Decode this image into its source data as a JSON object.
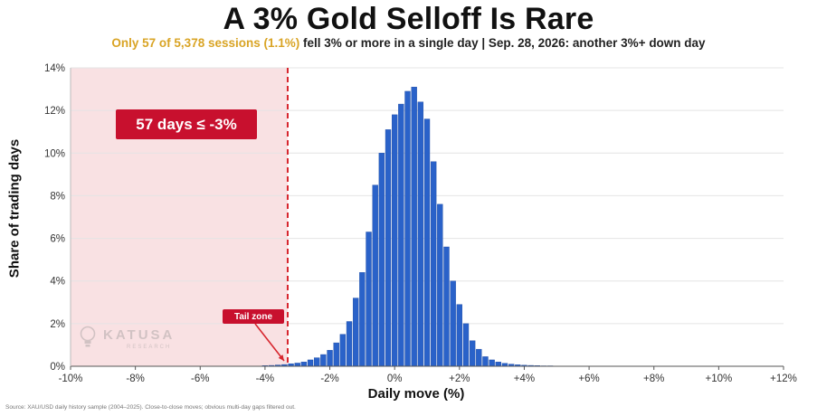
{
  "header": {
    "title": "A 3% Gold Selloff Is Rare",
    "subtitle_highlight": "Only 57 of 5,378 sessions (1.1%)",
    "subtitle_rest": " fell 3% or more in a single day | Sep. 28, 2026: another 3%+ down day"
  },
  "annotations": {
    "callout": "57 days ≤ -3%",
    "tail_tag": "Tail zone"
  },
  "watermark": {
    "name": "KATUSA",
    "sub": "RESEARCH"
  },
  "source": "Source: XAU/USD daily history sample (2004–2025). Close-to-close moves; obvious multi-day gaps filtered out.",
  "colors": {
    "bar": "#2a62c9",
    "bar_edge": "#1c4aa3",
    "tail_fill": "#f9e1e3",
    "threshold": "#d7262e",
    "callout_bg": "#c8102e"
  },
  "chart_data": {
    "type": "bar",
    "xlabel": "Daily move (%)",
    "ylabel": "Share of trading days",
    "xlim": [
      -10,
      12
    ],
    "ylim": [
      0,
      14
    ],
    "x_ticks": [
      "-10%",
      "-8%",
      "-6%",
      "-4%",
      "-2%",
      "0%",
      "+2%",
      "+4%",
      "+6%",
      "+8%",
      "+10%",
      "+12%"
    ],
    "x_tick_values": [
      -10,
      -8,
      -6,
      -4,
      -2,
      0,
      2,
      4,
      6,
      8,
      10,
      12
    ],
    "y_ticks": [
      "0%",
      "2%",
      "4%",
      "6%",
      "8%",
      "10%",
      "12%",
      "14%"
    ],
    "y_tick_values": [
      0,
      2,
      4,
      6,
      8,
      10,
      12,
      14
    ],
    "threshold": -3.3,
    "bin_width": 0.2,
    "bins": [
      {
        "x": -4.0,
        "y": 0.03
      },
      {
        "x": -3.8,
        "y": 0.04
      },
      {
        "x": -3.6,
        "y": 0.06
      },
      {
        "x": -3.4,
        "y": 0.08
      },
      {
        "x": -3.2,
        "y": 0.12
      },
      {
        "x": -3.0,
        "y": 0.15
      },
      {
        "x": -2.8,
        "y": 0.2
      },
      {
        "x": -2.6,
        "y": 0.3
      },
      {
        "x": -2.4,
        "y": 0.4
      },
      {
        "x": -2.2,
        "y": 0.55
      },
      {
        "x": -2.0,
        "y": 0.75
      },
      {
        "x": -1.8,
        "y": 1.1
      },
      {
        "x": -1.6,
        "y": 1.5
      },
      {
        "x": -1.4,
        "y": 2.1
      },
      {
        "x": -1.2,
        "y": 3.2
      },
      {
        "x": -1.0,
        "y": 4.4
      },
      {
        "x": -0.8,
        "y": 6.3
      },
      {
        "x": -0.6,
        "y": 8.5
      },
      {
        "x": -0.4,
        "y": 10.0
      },
      {
        "x": -0.2,
        "y": 11.1
      },
      {
        "x": 0.0,
        "y": 11.8
      },
      {
        "x": 0.2,
        "y": 12.3
      },
      {
        "x": 0.4,
        "y": 12.9
      },
      {
        "x": 0.6,
        "y": 13.1
      },
      {
        "x": 0.8,
        "y": 12.4
      },
      {
        "x": 1.0,
        "y": 11.6
      },
      {
        "x": 1.2,
        "y": 9.6
      },
      {
        "x": 1.4,
        "y": 7.6
      },
      {
        "x": 1.6,
        "y": 5.6
      },
      {
        "x": 1.8,
        "y": 4.0
      },
      {
        "x": 2.0,
        "y": 2.9
      },
      {
        "x": 2.2,
        "y": 2.0
      },
      {
        "x": 2.4,
        "y": 1.2
      },
      {
        "x": 2.6,
        "y": 0.8
      },
      {
        "x": 2.8,
        "y": 0.45
      },
      {
        "x": 3.0,
        "y": 0.3
      },
      {
        "x": 3.2,
        "y": 0.2
      },
      {
        "x": 3.4,
        "y": 0.14
      },
      {
        "x": 3.6,
        "y": 0.1
      },
      {
        "x": 3.8,
        "y": 0.07
      },
      {
        "x": 4.0,
        "y": 0.05
      },
      {
        "x": 4.2,
        "y": 0.04
      },
      {
        "x": 4.4,
        "y": 0.03
      },
      {
        "x": 4.6,
        "y": 0.02
      },
      {
        "x": 4.8,
        "y": 0.02
      },
      {
        "x": 5.0,
        "y": 0.01
      }
    ]
  }
}
